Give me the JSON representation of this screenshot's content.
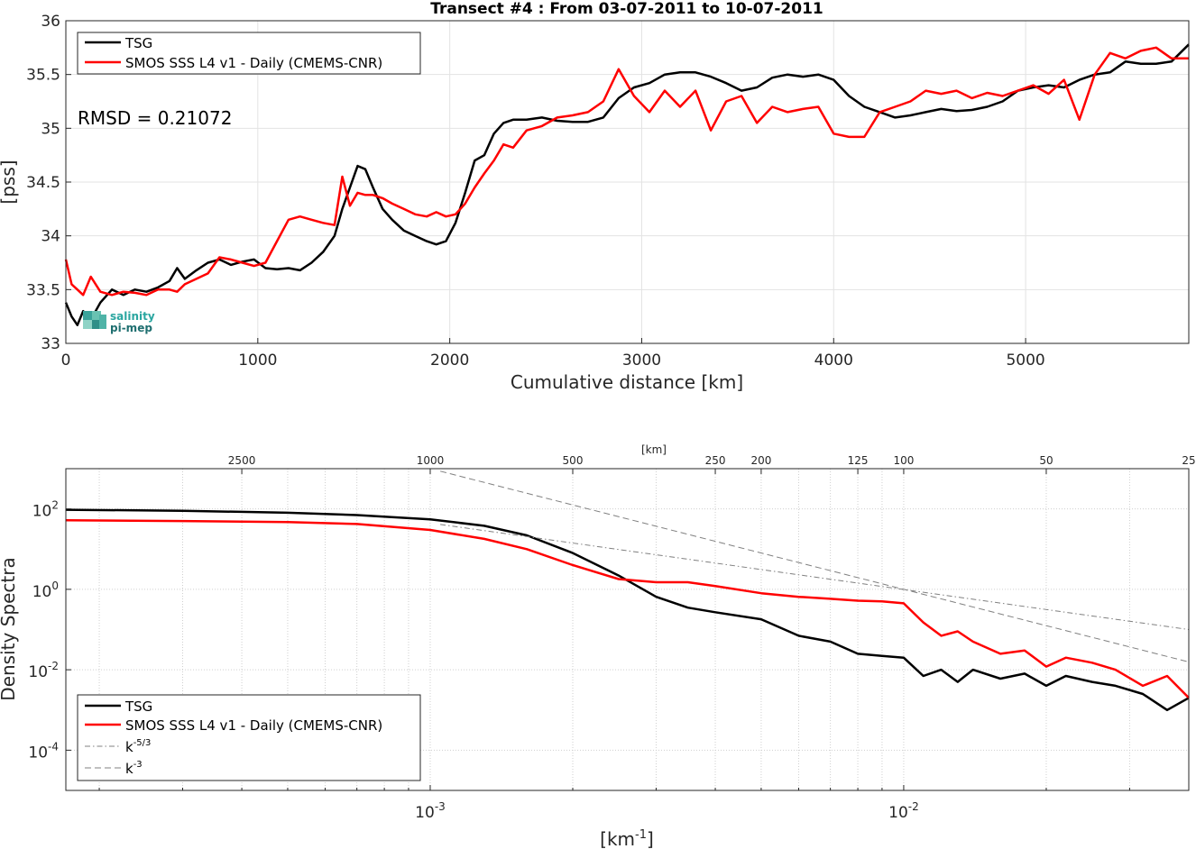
{
  "chart_data": [
    {
      "type": "line",
      "title": "Transect #4 : From 03-07-2011 to 10-07-2011",
      "xlabel": "Cumulative distance [km]",
      "ylabel": "[pss]",
      "xlim": [
        0,
        5850
      ],
      "ylim": [
        33,
        36
      ],
      "xticks": [
        "0",
        "1000",
        "2000",
        "3000",
        "4000",
        "5000"
      ],
      "yticks": [
        "33",
        "33.5",
        "34",
        "34.5",
        "35",
        "35.5",
        "36"
      ],
      "grid": true,
      "legend_position": "top-left",
      "annotation": "RMSD = 0.21072",
      "logo": {
        "line1": "salinity",
        "line2": "pi-mep"
      },
      "series": [
        {
          "name": "TSG",
          "color": "#000000",
          "x": [
            0,
            30,
            60,
            90,
            130,
            180,
            240,
            300,
            360,
            420,
            480,
            540,
            580,
            620,
            680,
            740,
            800,
            860,
            920,
            980,
            1040,
            1100,
            1160,
            1220,
            1280,
            1340,
            1400,
            1440,
            1480,
            1520,
            1560,
            1600,
            1650,
            1700,
            1760,
            1820,
            1880,
            1930,
            1980,
            2030,
            2080,
            2130,
            2180,
            2230,
            2280,
            2330,
            2400,
            2480,
            2560,
            2640,
            2720,
            2800,
            2880,
            2960,
            3040,
            3120,
            3200,
            3280,
            3360,
            3440,
            3520,
            3600,
            3680,
            3760,
            3840,
            3920,
            4000,
            4080,
            4160,
            4240,
            4320,
            4400,
            4480,
            4560,
            4640,
            4720,
            4800,
            4880,
            4960,
            5040,
            5120,
            5200,
            5280,
            5360,
            5440,
            5520,
            5600,
            5680,
            5760,
            5850
          ],
          "y": [
            33.38,
            33.25,
            33.17,
            33.3,
            33.22,
            33.38,
            33.5,
            33.45,
            33.5,
            33.48,
            33.52,
            33.58,
            33.7,
            33.6,
            33.68,
            33.75,
            33.78,
            33.73,
            33.76,
            33.78,
            33.7,
            33.69,
            33.7,
            33.68,
            33.75,
            33.85,
            34.0,
            34.25,
            34.45,
            34.65,
            34.62,
            34.45,
            34.25,
            34.15,
            34.05,
            34.0,
            33.95,
            33.92,
            33.95,
            34.12,
            34.4,
            34.7,
            34.75,
            34.95,
            35.05,
            35.08,
            35.08,
            35.1,
            35.07,
            35.06,
            35.06,
            35.1,
            35.28,
            35.38,
            35.42,
            35.5,
            35.52,
            35.52,
            35.48,
            35.42,
            35.35,
            35.38,
            35.47,
            35.5,
            35.48,
            35.5,
            35.45,
            35.3,
            35.2,
            35.15,
            35.1,
            35.12,
            35.15,
            35.18,
            35.16,
            35.17,
            35.2,
            35.25,
            35.35,
            35.38,
            35.4,
            35.38,
            35.45,
            35.5,
            35.52,
            35.62,
            35.6,
            35.6,
            35.62,
            35.78
          ]
        },
        {
          "name": "SMOS SSS L4 v1 - Daily (CMEMS-CNR)",
          "color": "#ff0000",
          "x": [
            0,
            30,
            60,
            90,
            130,
            180,
            240,
            300,
            360,
            420,
            480,
            540,
            580,
            620,
            680,
            740,
            800,
            860,
            920,
            980,
            1040,
            1100,
            1160,
            1220,
            1280,
            1340,
            1400,
            1440,
            1480,
            1520,
            1560,
            1600,
            1650,
            1700,
            1760,
            1820,
            1880,
            1930,
            1980,
            2030,
            2080,
            2130,
            2180,
            2230,
            2280,
            2330,
            2400,
            2480,
            2560,
            2640,
            2720,
            2800,
            2880,
            2960,
            3040,
            3120,
            3200,
            3280,
            3360,
            3440,
            3520,
            3600,
            3680,
            3760,
            3840,
            3920,
            4000,
            4080,
            4160,
            4240,
            4320,
            4400,
            4480,
            4560,
            4640,
            4720,
            4800,
            4880,
            4960,
            5040,
            5120,
            5200,
            5280,
            5360,
            5440,
            5520,
            5600,
            5680,
            5760,
            5850
          ],
          "y": [
            33.78,
            33.55,
            33.5,
            33.45,
            33.62,
            33.48,
            33.45,
            33.48,
            33.47,
            33.45,
            33.5,
            33.5,
            33.48,
            33.55,
            33.6,
            33.65,
            33.8,
            33.78,
            33.75,
            33.72,
            33.75,
            33.95,
            34.15,
            34.18,
            34.15,
            34.12,
            34.1,
            34.55,
            34.28,
            34.4,
            34.38,
            34.38,
            34.35,
            34.3,
            34.25,
            34.2,
            34.18,
            34.22,
            34.18,
            34.2,
            34.3,
            34.45,
            34.58,
            34.7,
            34.85,
            34.82,
            34.98,
            35.02,
            35.1,
            35.12,
            35.15,
            35.25,
            35.55,
            35.3,
            35.15,
            35.35,
            35.2,
            35.35,
            34.98,
            35.25,
            35.3,
            35.05,
            35.2,
            35.15,
            35.18,
            35.2,
            34.95,
            34.92,
            34.92,
            35.15,
            35.2,
            35.25,
            35.35,
            35.32,
            35.35,
            35.28,
            35.33,
            35.3,
            35.35,
            35.4,
            35.32,
            35.45,
            35.08,
            35.5,
            35.7,
            35.65,
            35.72,
            35.75,
            35.65,
            35.65
          ]
        }
      ]
    },
    {
      "type": "line",
      "title": "",
      "xlabel": "[km-1]",
      "xlabel_base": "[km",
      "xlabel_exp": "-1",
      "xlabel_end": "]",
      "ylabel": "Density Spectra",
      "x_scale": "log",
      "y_scale": "log",
      "xlim": [
        0.00017,
        0.04
      ],
      "ylim": [
        1e-05,
        1000
      ],
      "xticks": [
        "10-3",
        "10-2"
      ],
      "xtick_values": [
        0.001,
        0.01
      ],
      "yticks": [
        "10-4",
        "10-2",
        "100",
        "102"
      ],
      "ytick_values": [
        0.0001,
        0.01,
        1,
        100
      ],
      "top_axis_label": "[km]",
      "top_axis_ticks": [
        "2500",
        "1000",
        "500",
        "250",
        "200",
        "125",
        "100",
        "50",
        "25"
      ],
      "top_axis_values_km": [
        2500,
        1000,
        500,
        250,
        200,
        125,
        100,
        50,
        25
      ],
      "grid": true,
      "legend_position": "bottom-left",
      "series": [
        {
          "name": "TSG",
          "color": "#000000",
          "style": "solid",
          "x": [
            0.00017,
            0.0003,
            0.0005,
            0.0007,
            0.001,
            0.0013,
            0.0016,
            0.002,
            0.0025,
            0.003,
            0.0035,
            0.004,
            0.005,
            0.006,
            0.007,
            0.008,
            0.009,
            0.01,
            0.011,
            0.012,
            0.013,
            0.014,
            0.016,
            0.018,
            0.02,
            0.022,
            0.025,
            0.028,
            0.032,
            0.036,
            0.04
          ],
          "y": [
            95,
            90,
            80,
            70,
            55,
            38,
            22,
            8,
            2.2,
            0.65,
            0.35,
            0.27,
            0.18,
            0.07,
            0.05,
            0.025,
            0.022,
            0.02,
            0.007,
            0.01,
            0.005,
            0.01,
            0.006,
            0.008,
            0.004,
            0.007,
            0.005,
            0.004,
            0.0025,
            0.001,
            0.002
          ]
        },
        {
          "name": "SMOS SSS L4 v1 - Daily (CMEMS-CNR)",
          "color": "#ff0000",
          "style": "solid",
          "x": [
            0.00017,
            0.0003,
            0.0005,
            0.0007,
            0.001,
            0.0013,
            0.0016,
            0.002,
            0.0025,
            0.003,
            0.0035,
            0.004,
            0.005,
            0.006,
            0.007,
            0.008,
            0.009,
            0.01,
            0.011,
            0.012,
            0.013,
            0.014,
            0.016,
            0.018,
            0.02,
            0.022,
            0.025,
            0.028,
            0.032,
            0.036,
            0.04
          ],
          "y": [
            52,
            50,
            47,
            42,
            30,
            18,
            10,
            4,
            1.8,
            1.5,
            1.5,
            1.2,
            0.8,
            0.65,
            0.58,
            0.52,
            0.5,
            0.45,
            0.15,
            0.07,
            0.09,
            0.05,
            0.025,
            0.03,
            0.012,
            0.02,
            0.015,
            0.01,
            0.004,
            0.007,
            0.002
          ]
        },
        {
          "name": "k-5/3",
          "name_base": "k",
          "name_exp": "-5/3",
          "color": "#808080",
          "style": "dashdot",
          "x": [
            0.00105,
            0.04
          ],
          "y": [
            41.1,
            0.1
          ]
        },
        {
          "name": "k-3",
          "name_base": "k",
          "name_exp": "-3",
          "color": "#808080",
          "style": "dashed",
          "x": [
            0.00105,
            0.04
          ],
          "y": [
            864,
            0.0156
          ]
        }
      ]
    }
  ]
}
